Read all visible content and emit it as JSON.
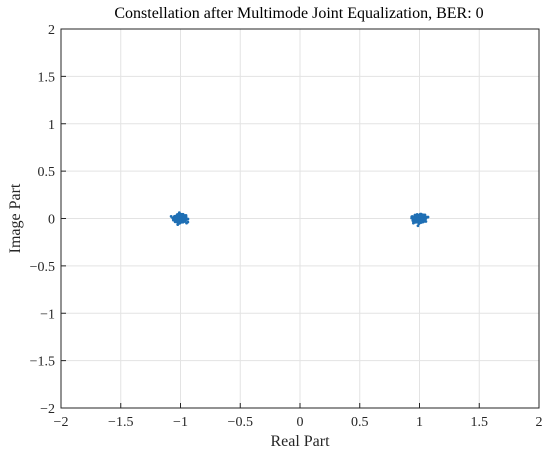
{
  "chart_data": {
    "type": "scatter",
    "title": "Constellation after Multimode Joint Equalization, BER: 0",
    "xlabel": "Real Part",
    "ylabel": "Image Part",
    "xlim": [
      -2,
      2
    ],
    "ylim": [
      -2,
      2
    ],
    "xticks": [
      -2,
      -1.5,
      -1,
      -0.5,
      0,
      0.5,
      1,
      1.5,
      2
    ],
    "yticks": [
      -2,
      -1.5,
      -1,
      -0.5,
      0,
      0.5,
      1,
      1.5,
      2
    ],
    "xtick_labels": [
      "−2",
      "−1.5",
      "−1",
      "−0.5",
      "0",
      "0.5",
      "1",
      "1.5",
      "2"
    ],
    "ytick_labels": [
      "−2",
      "−1.5",
      "−1",
      "−0.5",
      "0",
      "0.5",
      "1",
      "1.5",
      "2"
    ],
    "grid": true,
    "marker_color": "#1f6fb4",
    "clusters": [
      {
        "center": [
          -1,
          0
        ],
        "spread": 0.05
      },
      {
        "center": [
          1,
          0
        ],
        "spread": 0.05
      }
    ]
  }
}
